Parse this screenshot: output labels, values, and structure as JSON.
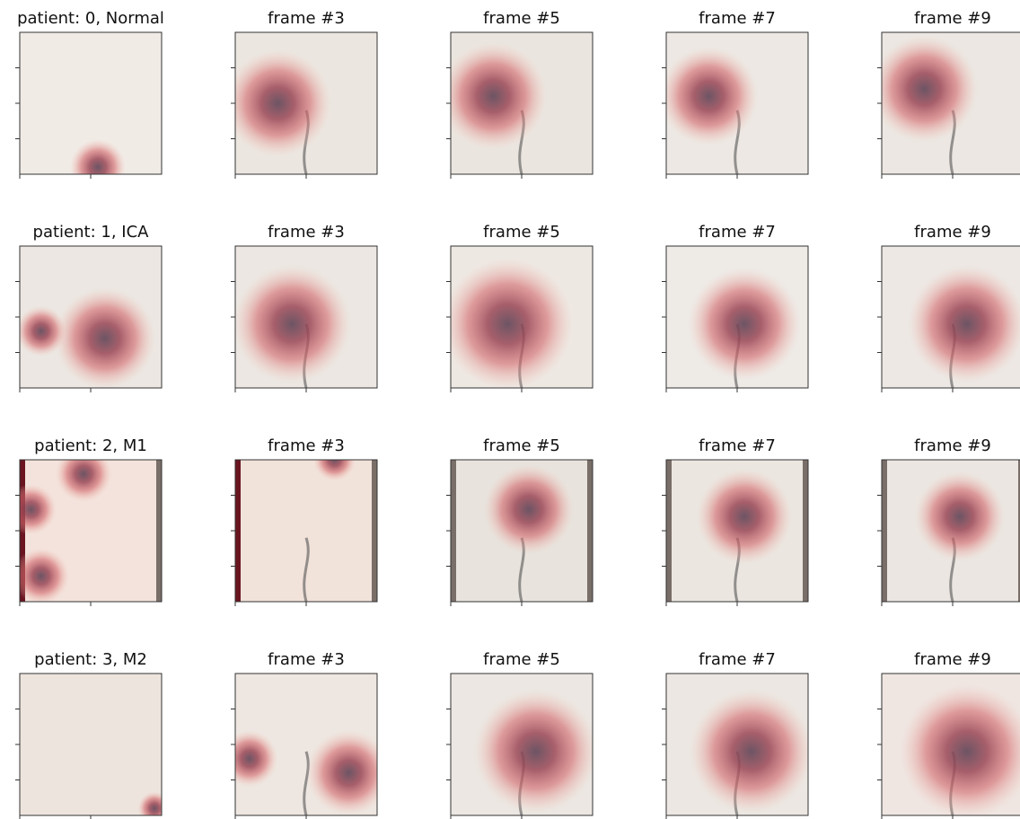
{
  "rows": [
    {
      "titles": [
        "patient: 0, Normal",
        "frame #3",
        "frame #5",
        "frame #7",
        "frame #9"
      ]
    },
    {
      "titles": [
        "patient: 1, ICA",
        "frame #3",
        "frame #5",
        "frame #7",
        "frame #9"
      ]
    },
    {
      "titles": [
        "patient: 2, M1",
        "frame #3",
        "frame #5",
        "frame #7",
        "frame #9"
      ]
    },
    {
      "titles": [
        "patient: 3, M2",
        "frame #3",
        "frame #5",
        "frame #7",
        "frame #9"
      ]
    }
  ]
}
